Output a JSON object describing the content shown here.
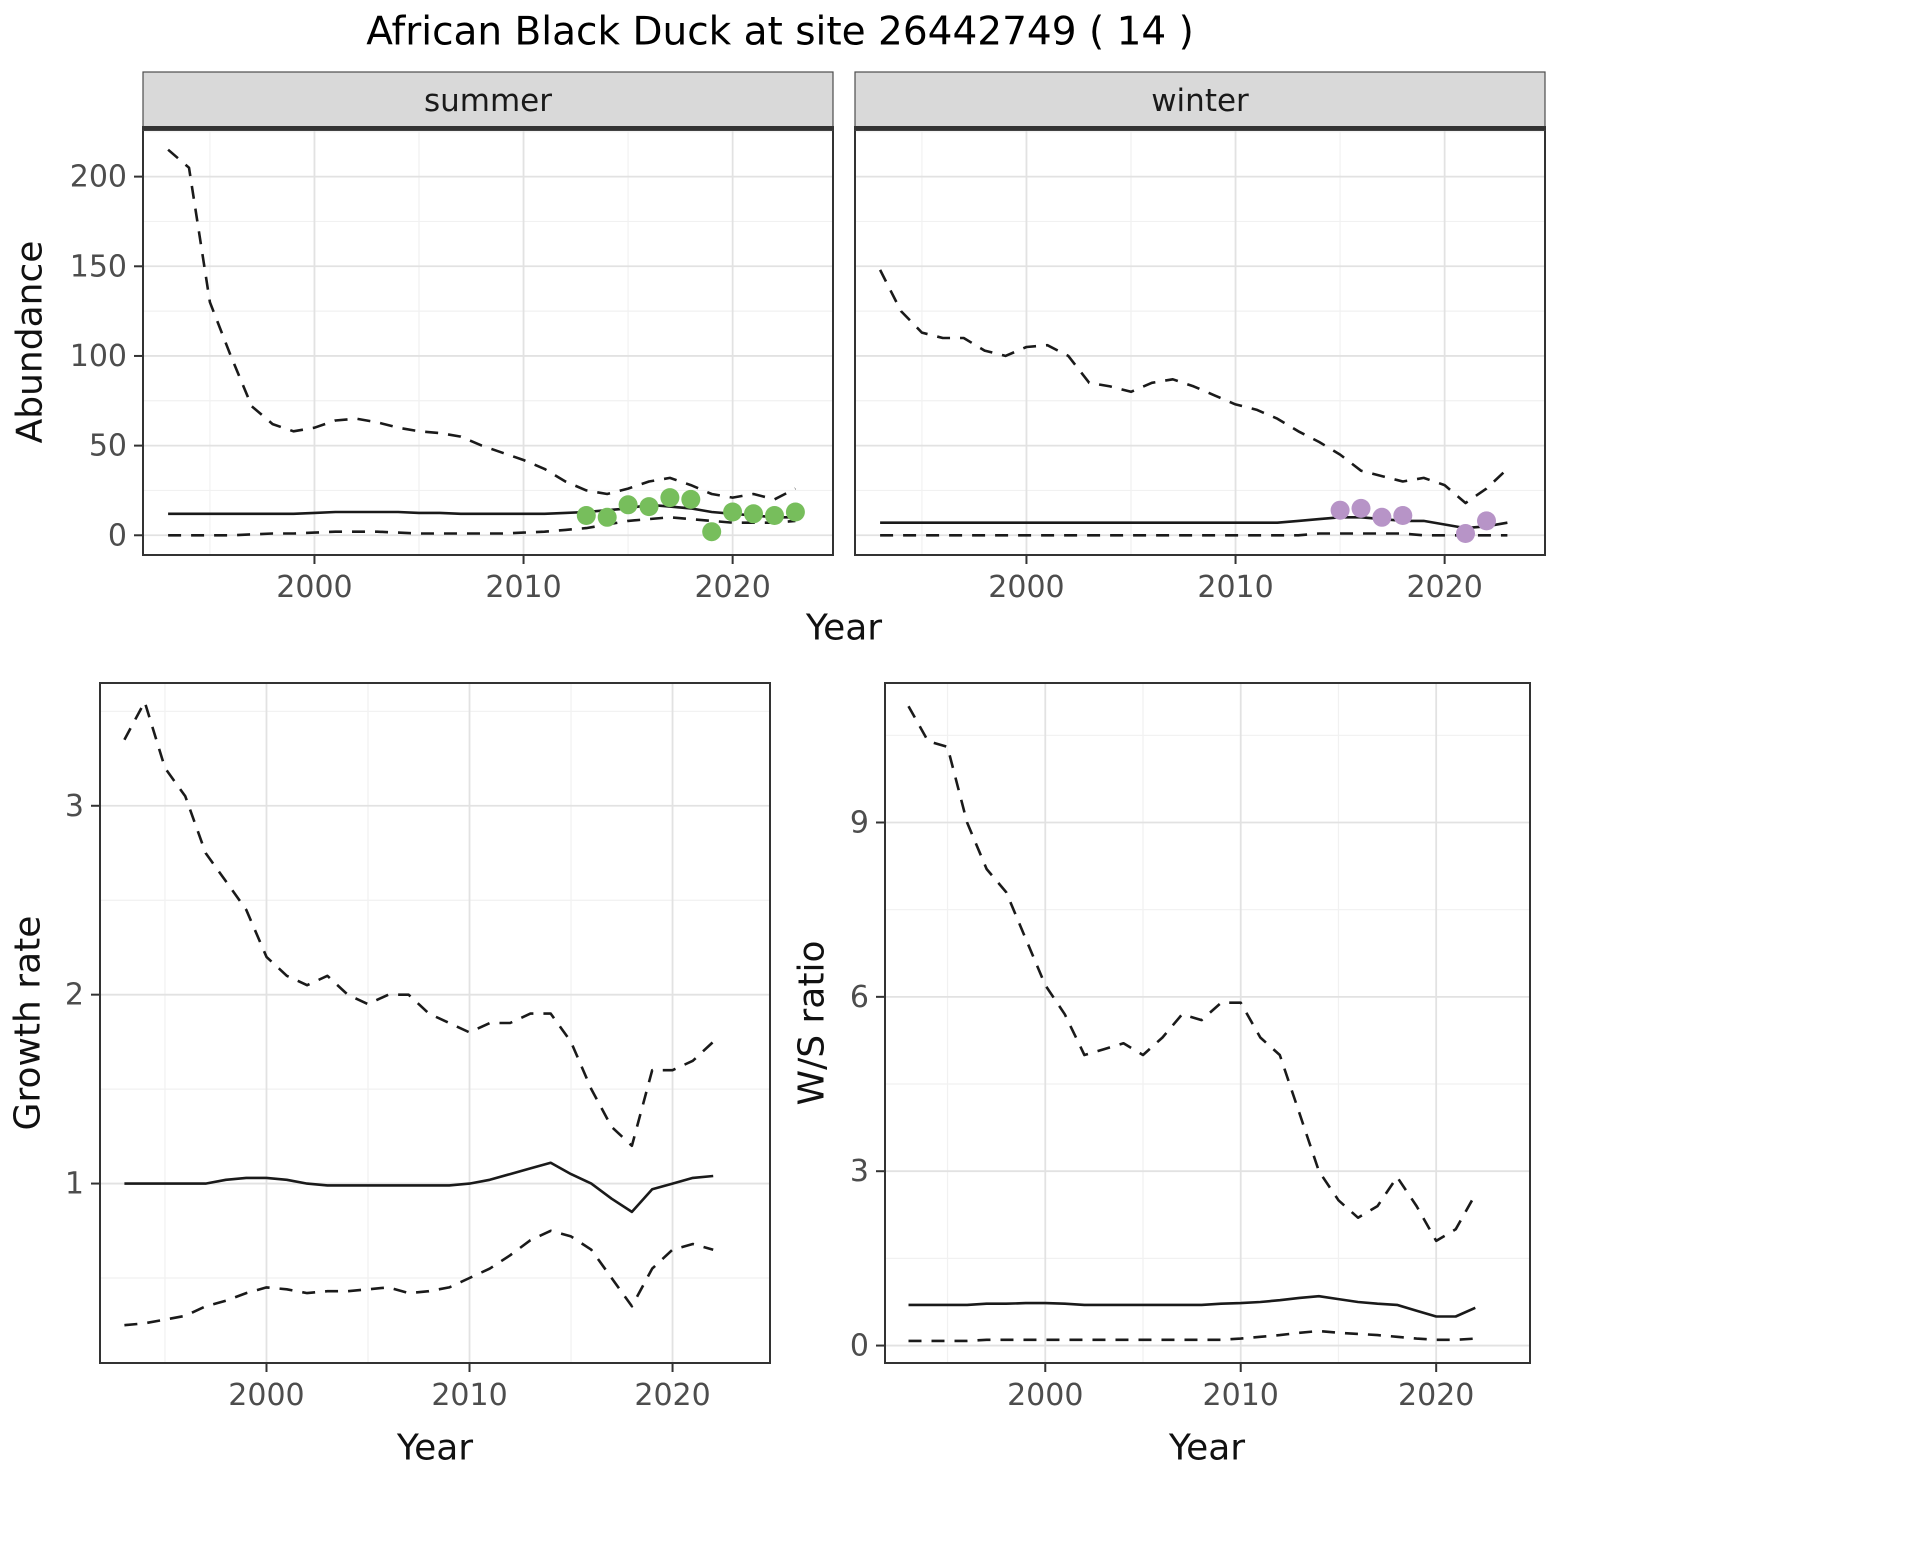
{
  "title": "African Black Duck at site 26442749 ( 14 )",
  "axis": {
    "abundance_label": "Abundance",
    "year_label_top": "Year",
    "growth_label": "Growth rate",
    "year_label_bottom_left": "Year",
    "ws_label": "W/S ratio",
    "year_label_bottom_right": "Year"
  },
  "colors": {
    "summer_points": "#77BE5C",
    "winter_points": "#B794C7",
    "line": "#1A1A1A",
    "grid_major": "#E2E2E2",
    "grid_minor": "#F1F1F1",
    "panel_border": "#333333",
    "strip_bg": "#D9D9D9",
    "strip_border": "#4D4D4D",
    "tick_text": "#4D4D4D",
    "tick_mark": "#333333"
  },
  "chart_data": [
    {
      "id": "abundance-summer",
      "type": "line",
      "facet_label": "summer",
      "ylabel": "Abundance",
      "xlabel": "Year",
      "xlim": [
        1991.8,
        2024.8
      ],
      "ylim": [
        -11,
        226
      ],
      "xticks": [
        2000,
        2010,
        2020
      ],
      "xminor": [
        1995,
        2005,
        2015
      ],
      "yticks": [
        0,
        50,
        100,
        150,
        200
      ],
      "yminor": [
        25,
        75,
        125,
        175,
        225
      ],
      "show_yticklabels": true,
      "grid": true,
      "x": [
        1993,
        1994,
        1995,
        1996,
        1997,
        1998,
        1999,
        2000,
        2001,
        2002,
        2003,
        2004,
        2005,
        2006,
        2007,
        2008,
        2009,
        2010,
        2011,
        2012,
        2013,
        2014,
        2015,
        2016,
        2017,
        2018,
        2019,
        2020,
        2021,
        2022,
        2023
      ],
      "series": [
        {
          "name": "upper-ci",
          "style": "dashed",
          "values": [
            215,
            205,
            130,
            100,
            72,
            62,
            58,
            60,
            64,
            65,
            63,
            60,
            58,
            57,
            55,
            50,
            46,
            42,
            37,
            30,
            25,
            23,
            26,
            30,
            32,
            28,
            23,
            21,
            23,
            20,
            26
          ]
        },
        {
          "name": "median",
          "style": "solid",
          "values": [
            12,
            12,
            12,
            12,
            12,
            12,
            12,
            12.5,
            13,
            13,
            13,
            13,
            12.5,
            12.5,
            12,
            12,
            12,
            12,
            12,
            12.5,
            13,
            14,
            15,
            17,
            16,
            15,
            13,
            12,
            11,
            10,
            10
          ]
        },
        {
          "name": "lower-ci",
          "style": "dashed",
          "values": [
            0,
            0,
            0,
            0,
            0.5,
            1,
            1,
            1.5,
            2,
            2,
            2,
            1.5,
            1,
            1,
            1,
            1,
            1,
            1.5,
            2,
            3,
            4,
            6,
            8,
            9,
            10,
            9,
            8,
            7,
            7,
            7,
            8
          ]
        }
      ],
      "points": {
        "name": "summer-observation",
        "color": "#77BE5C",
        "x": [
          2013,
          2014,
          2015,
          2016,
          2017,
          2018,
          2019,
          2020,
          2021,
          2022,
          2023
        ],
        "y": [
          11,
          10,
          17,
          16,
          21,
          20,
          2,
          13,
          12,
          11,
          13
        ]
      }
    },
    {
      "id": "abundance-winter",
      "type": "line",
      "facet_label": "winter",
      "ylabel": "Abundance",
      "xlabel": "Year",
      "xlim": [
        1991.8,
        2024.8
      ],
      "ylim": [
        -11,
        226
      ],
      "xticks": [
        2000,
        2010,
        2020
      ],
      "xminor": [
        1995,
        2005,
        2015
      ],
      "yticks": [
        0,
        50,
        100,
        150,
        200
      ],
      "yminor": [
        25,
        75,
        125,
        175,
        225
      ],
      "show_yticklabels": false,
      "grid": true,
      "x": [
        1993,
        1994,
        1995,
        1996,
        1997,
        1998,
        1999,
        2000,
        2001,
        2002,
        2003,
        2004,
        2005,
        2006,
        2007,
        2008,
        2009,
        2010,
        2011,
        2012,
        2013,
        2014,
        2015,
        2016,
        2017,
        2018,
        2019,
        2020,
        2021,
        2022,
        2023
      ],
      "series": [
        {
          "name": "upper-ci",
          "style": "dashed",
          "values": [
            148,
            125,
            113,
            110,
            110,
            103,
            100,
            105,
            106,
            100,
            85,
            83,
            80,
            85,
            87,
            83,
            78,
            73,
            70,
            65,
            58,
            52,
            45,
            36,
            33,
            30,
            32,
            28,
            18,
            26,
            37
          ]
        },
        {
          "name": "median",
          "style": "solid",
          "values": [
            7,
            7,
            7,
            7,
            7,
            7,
            7,
            7,
            7,
            7,
            7,
            7,
            7,
            7,
            7,
            7,
            7,
            7,
            7,
            7,
            8,
            9,
            10,
            10,
            9,
            8,
            8,
            6,
            4,
            5,
            7
          ]
        },
        {
          "name": "lower-ci",
          "style": "dashed",
          "values": [
            0,
            0,
            0,
            0,
            0,
            0,
            0,
            0,
            0,
            0,
            0,
            0,
            0,
            0,
            0,
            0,
            0,
            0,
            0,
            0,
            0,
            1,
            1,
            1,
            1,
            1,
            0,
            0,
            0,
            0,
            0
          ]
        }
      ],
      "points": {
        "name": "winter-observation",
        "color": "#B794C7",
        "x": [
          2015,
          2016,
          2017,
          2018,
          2021,
          2022
        ],
        "y": [
          14,
          15,
          10,
          11,
          1,
          8
        ]
      }
    },
    {
      "id": "growth-rate",
      "type": "line",
      "facet_label": null,
      "ylabel": "Growth rate",
      "xlabel": "Year",
      "xlim": [
        1991.8,
        2024.8
      ],
      "ylim": [
        0.05,
        3.65
      ],
      "xticks": [
        2000,
        2010,
        2020
      ],
      "xminor": [
        1995,
        2005,
        2015
      ],
      "yticks": [
        1,
        2,
        3
      ],
      "yminor": [
        0.5,
        1.5,
        2.5,
        3.5
      ],
      "show_yticklabels": true,
      "grid": true,
      "x": [
        1993,
        1994,
        1995,
        1996,
        1997,
        1998,
        1999,
        2000,
        2001,
        2002,
        2003,
        2004,
        2005,
        2006,
        2007,
        2008,
        2009,
        2010,
        2011,
        2012,
        2013,
        2014,
        2015,
        2016,
        2017,
        2018,
        2019,
        2020,
        2021,
        2022
      ],
      "series": [
        {
          "name": "upper-ci",
          "style": "dashed",
          "values": [
            3.35,
            3.55,
            3.2,
            3.05,
            2.75,
            2.6,
            2.45,
            2.2,
            2.1,
            2.05,
            2.1,
            2.0,
            1.95,
            2.0,
            2.0,
            1.9,
            1.85,
            1.8,
            1.85,
            1.85,
            1.9,
            1.9,
            1.75,
            1.5,
            1.3,
            1.2,
            1.6,
            1.6,
            1.65,
            1.75
          ]
        },
        {
          "name": "median",
          "style": "solid",
          "values": [
            1.0,
            1.0,
            1.0,
            1.0,
            1.0,
            1.02,
            1.03,
            1.03,
            1.02,
            1.0,
            0.99,
            0.99,
            0.99,
            0.99,
            0.99,
            0.99,
            0.99,
            1.0,
            1.02,
            1.05,
            1.08,
            1.11,
            1.05,
            1.0,
            0.92,
            0.85,
            0.97,
            1.0,
            1.03,
            1.04
          ]
        },
        {
          "name": "lower-ci",
          "style": "dashed",
          "values": [
            0.25,
            0.26,
            0.28,
            0.3,
            0.35,
            0.38,
            0.42,
            0.45,
            0.44,
            0.42,
            0.43,
            0.43,
            0.44,
            0.45,
            0.42,
            0.43,
            0.45,
            0.5,
            0.55,
            0.62,
            0.7,
            0.75,
            0.72,
            0.65,
            0.5,
            0.35,
            0.55,
            0.65,
            0.68,
            0.65
          ]
        }
      ],
      "points": null
    },
    {
      "id": "ws-ratio",
      "type": "line",
      "facet_label": null,
      "ylabel": "W/S ratio",
      "xlabel": "Year",
      "xlim": [
        1991.8,
        2024.8
      ],
      "ylim": [
        -0.3,
        11.4
      ],
      "xticks": [
        2000,
        2010,
        2020
      ],
      "xminor": [
        1995,
        2005,
        2015
      ],
      "yticks": [
        0,
        3,
        6,
        9
      ],
      "yminor": [
        1.5,
        4.5,
        7.5,
        10.5
      ],
      "show_yticklabels": true,
      "grid": true,
      "x": [
        1993,
        1994,
        1995,
        1996,
        1997,
        1998,
        1999,
        2000,
        2001,
        2002,
        2003,
        2004,
        2005,
        2006,
        2007,
        2008,
        2009,
        2010,
        2011,
        2012,
        2013,
        2014,
        2015,
        2016,
        2017,
        2018,
        2019,
        2020,
        2021,
        2022
      ],
      "series": [
        {
          "name": "upper-ci",
          "style": "dashed",
          "values": [
            11.0,
            10.4,
            10.3,
            9.0,
            8.2,
            7.8,
            7.0,
            6.2,
            5.7,
            5.0,
            5.1,
            5.2,
            5.0,
            5.3,
            5.7,
            5.6,
            5.9,
            5.9,
            5.3,
            5.0,
            4.0,
            3.0,
            2.5,
            2.2,
            2.4,
            2.9,
            2.4,
            1.8,
            2.0,
            2.6
          ]
        },
        {
          "name": "median",
          "style": "solid",
          "values": [
            0.7,
            0.7,
            0.7,
            0.7,
            0.72,
            0.72,
            0.73,
            0.73,
            0.72,
            0.7,
            0.7,
            0.7,
            0.7,
            0.7,
            0.7,
            0.7,
            0.72,
            0.73,
            0.75,
            0.78,
            0.82,
            0.85,
            0.8,
            0.75,
            0.72,
            0.7,
            0.6,
            0.5,
            0.5,
            0.65
          ]
        },
        {
          "name": "lower-ci",
          "style": "dashed",
          "values": [
            0.08,
            0.08,
            0.08,
            0.08,
            0.1,
            0.1,
            0.1,
            0.1,
            0.1,
            0.1,
            0.1,
            0.1,
            0.1,
            0.1,
            0.1,
            0.1,
            0.1,
            0.12,
            0.15,
            0.18,
            0.22,
            0.25,
            0.22,
            0.2,
            0.18,
            0.15,
            0.12,
            0.1,
            0.1,
            0.12
          ]
        }
      ],
      "points": null
    }
  ]
}
